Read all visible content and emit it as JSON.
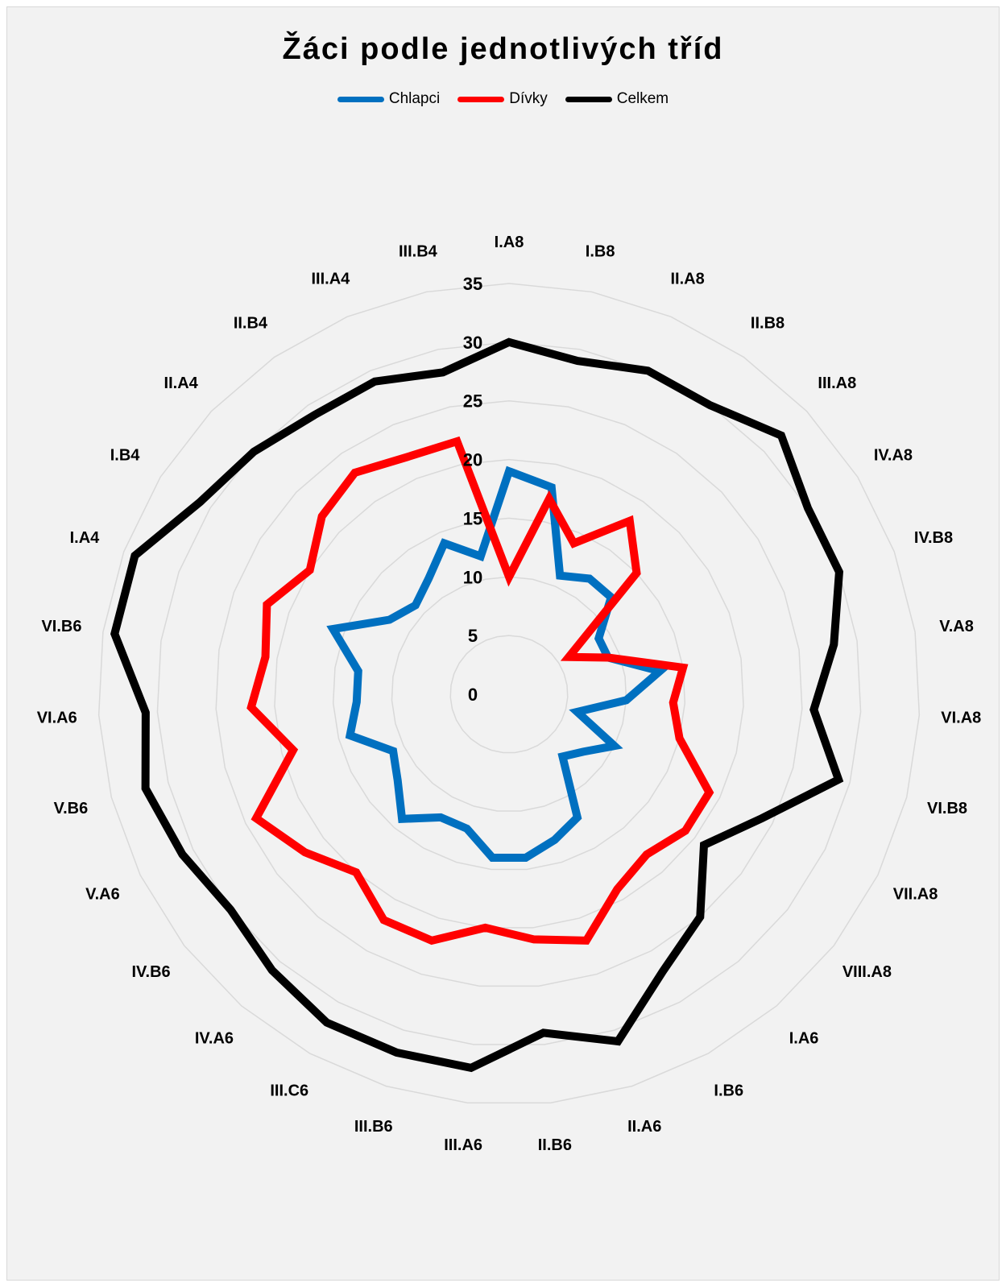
{
  "chart_data": {
    "type": "radar",
    "title": "Žáci podle jednotlivých tříd",
    "categories": [
      "I.A8",
      "I.B8",
      "II.A8",
      "II.B8",
      "III.A8",
      "IV.A8",
      "IV.B8",
      "V.A8",
      "VI.A8",
      "VI.B8",
      "VII.A8",
      "VIII.A8",
      "I.A6",
      "I.B6",
      "II.A6",
      "II.B6",
      "III.A6",
      "III.B6",
      "III.C6",
      "IV.A6",
      "IV.B6",
      "V.A6",
      "V.B6",
      "VI.A6",
      "VI.B6",
      "I.A4",
      "I.B4",
      "II.A4",
      "II.B4",
      "III.A4",
      "III.B4"
    ],
    "series": [
      {
        "name": "Chlapci",
        "color": "#0070c0",
        "values": [
          19,
          18,
          11,
          12,
          12,
          9,
          9,
          13,
          10,
          6,
          10,
          8,
          7,
          12,
          13,
          14,
          14,
          12,
          12,
          14,
          12,
          11,
          14,
          13,
          13,
          16,
          12,
          11,
          12,
          14,
          12
        ]
      },
      {
        "name": "Dívky",
        "color": "#ff0000",
        "values": [
          10,
          17,
          14,
          18,
          15,
          6,
          9,
          15,
          14,
          15,
          19,
          19,
          18,
          19,
          22,
          21,
          20,
          22,
          22,
          20,
          22,
          24,
          19,
          22,
          21,
          22,
          20,
          22,
          23,
          22,
          22
        ]
      },
      {
        "name": "Celkem",
        "color": "#000000",
        "values": [
          30,
          29,
          30,
          30,
          32,
          30,
          30,
          28,
          26,
          29,
          24,
          21,
          25,
          27,
          31,
          29,
          32,
          32,
          32,
          31,
          30,
          31,
          32,
          31,
          34,
          34,
          31,
          30,
          29,
          29,
          28
        ]
      }
    ],
    "rlim": [
      0,
      35
    ],
    "ticks": [
      0,
      5,
      10,
      15,
      20,
      25,
      30,
      35
    ],
    "grid": true,
    "legend_position": "top"
  }
}
